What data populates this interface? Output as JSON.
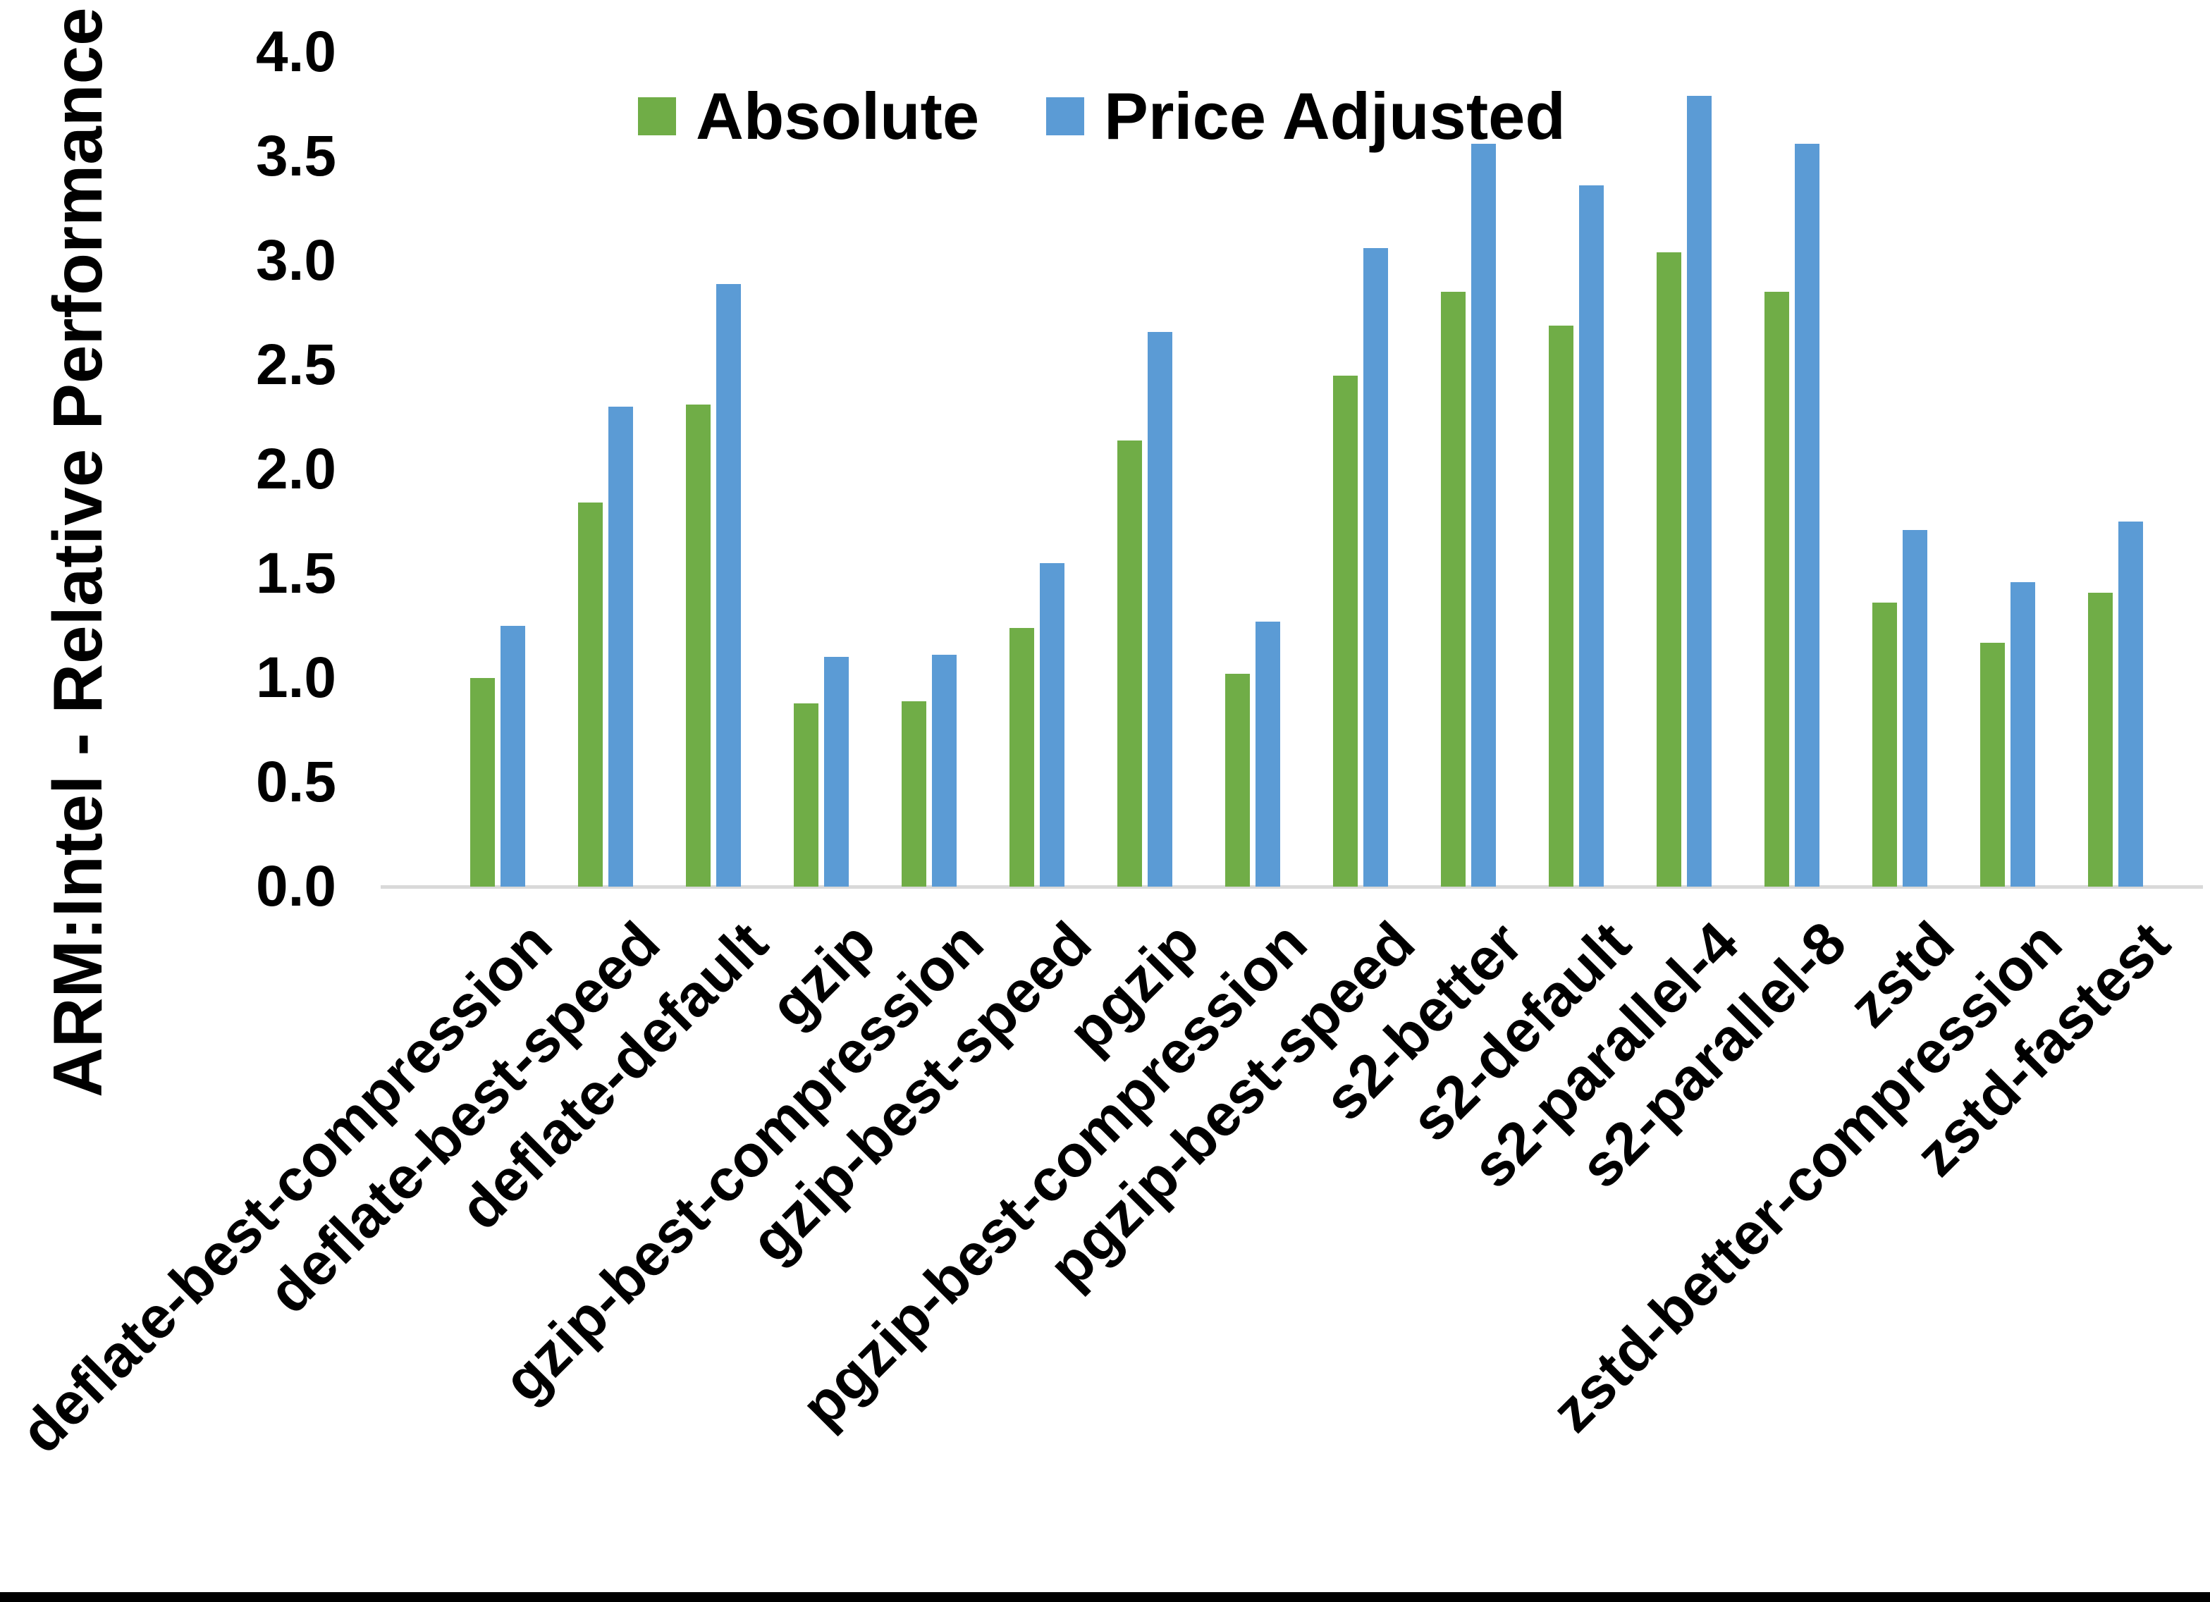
{
  "page": {
    "background": "#FFFFFF",
    "text_color": "#000000",
    "bottom_bar_color": "#000000"
  },
  "chart_data": {
    "type": "bar",
    "title": "",
    "xlabel": "",
    "ylabel": "ARM:Intel - Relative Performance",
    "ylim": [
      0.0,
      4.0
    ],
    "ytick_step": 0.5,
    "yticks": [
      "4.0",
      "3.5",
      "3.0",
      "2.5",
      "2.0",
      "1.5",
      "1.0",
      "0.5",
      "0.0"
    ],
    "grid": false,
    "legend_position": "top-center",
    "axis_line_color": "#D9D9D9",
    "categories": [
      "deflate-best-compression",
      "deflate-best-speed",
      "deflate-default",
      "gzip",
      "gzip-best-compression",
      "gzip-best-speed",
      "pgzip",
      "pgzip-best-compression",
      "pgzip-best-speed",
      "s2-better",
      "s2-default",
      "s2-parallel-4",
      "s2-parallel-8",
      "zstd",
      "zstd-better-compression",
      "zstd-fastest"
    ],
    "series": [
      {
        "name": "Absolute",
        "color": "#70AD47",
        "values": [
          1.0,
          1.84,
          2.31,
          0.88,
          0.89,
          1.24,
          2.14,
          1.02,
          2.45,
          2.85,
          2.69,
          3.04,
          2.85,
          1.36,
          1.17,
          1.41
        ]
      },
      {
        "name": "Price Adjusted",
        "color": "#5B9BD5",
        "values": [
          1.25,
          2.3,
          2.89,
          1.1,
          1.11,
          1.55,
          2.66,
          1.27,
          3.06,
          3.56,
          3.36,
          3.79,
          3.56,
          1.71,
          1.46,
          1.75
        ]
      }
    ]
  }
}
